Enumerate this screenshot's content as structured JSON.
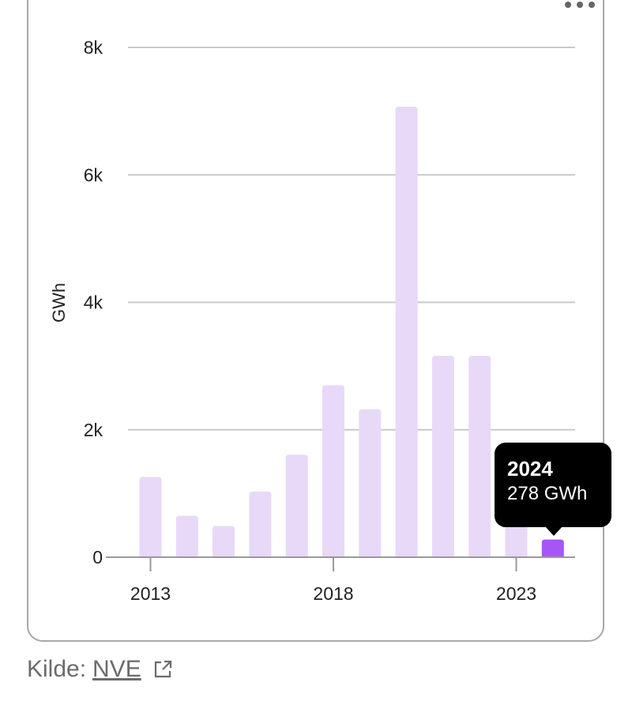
{
  "chart_data": {
    "type": "bar",
    "categories": [
      "2013",
      "2014",
      "2015",
      "2016",
      "2017",
      "2018",
      "2019",
      "2020",
      "2021",
      "2022",
      "2023",
      "2024"
    ],
    "values": [
      1260,
      650,
      490,
      1030,
      1610,
      2700,
      2320,
      7070,
      3160,
      3160,
      830,
      278
    ],
    "ylabel": "GWh",
    "ylim": [
      0,
      8000
    ],
    "yticks": [
      0,
      2000,
      4000,
      6000,
      8000
    ],
    "ytick_labels": [
      "0",
      "2k",
      "4k",
      "6k",
      "8k"
    ],
    "xticks": [
      "2013",
      "2018",
      "2023"
    ],
    "highlight_index": 11,
    "colors": {
      "bar": "#e7d9f7",
      "highlight": "#a855f7",
      "grid": "#c9c9c9"
    }
  },
  "tooltip": {
    "title": "2024",
    "value": "278 GWh"
  },
  "source": {
    "prefix": "Kilde:",
    "link": "NVE"
  },
  "icons": {
    "menu": "more-horizontal-icon",
    "external": "external-link-icon"
  }
}
